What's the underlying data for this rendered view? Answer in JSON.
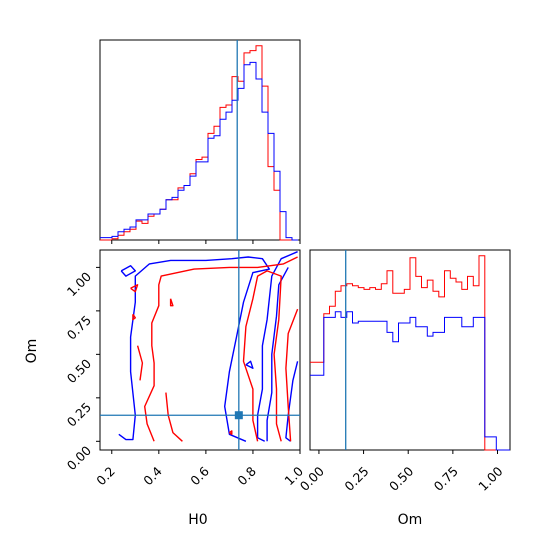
{
  "chart_data": {
    "type": "corner",
    "parameters": [
      "H0",
      "Om"
    ],
    "truths": {
      "H0": 0.74,
      "Om": 0.15
    },
    "colors": {
      "red": "#ff0000",
      "blue": "#0000ff",
      "truth": "#1f77b4"
    },
    "hist_H0": {
      "xlim": [
        0.15,
        1.01
      ],
      "bin_edges": [
        0.15,
        0.1758,
        0.2016,
        0.2274,
        0.2532,
        0.279,
        0.3048,
        0.3306,
        0.3564,
        0.3822,
        0.408,
        0.4338,
        0.4596,
        0.4854,
        0.5112,
        0.537,
        0.5628,
        0.5886,
        0.6144,
        0.6402,
        0.666,
        0.6918,
        0.7176,
        0.7434,
        0.7692,
        0.795,
        0.8208,
        0.8466,
        0.8724,
        0.8982,
        0.924,
        0.9498,
        0.9756,
        1.0014
      ],
      "series": [
        {
          "color": "red",
          "values": [
            0,
            0,
            0.5,
            2,
            3.5,
            4.5,
            8,
            7,
            10,
            11,
            13,
            17,
            17,
            22,
            23,
            28,
            34,
            35,
            45,
            48,
            56,
            57,
            69,
            67,
            79,
            80,
            82,
            65,
            31,
            21,
            0,
            0,
            0
          ]
        },
        {
          "color": "blue",
          "values": [
            1,
            1,
            1.5,
            3.5,
            4.5,
            5.5,
            8.5,
            8.5,
            11,
            11,
            13,
            17,
            18,
            21,
            23,
            27,
            33,
            33,
            43,
            44,
            51,
            54,
            59,
            64,
            74,
            75,
            68,
            54,
            45,
            29,
            12,
            1,
            0
          ]
        }
      ]
    },
    "hist_Om": {
      "xlim": [
        -0.05,
        1.07
      ],
      "bin_edges": [
        -0.05,
        -0.005,
        0.0272,
        0.0594,
        0.0916,
        0.1238,
        0.156,
        0.1882,
        0.2204,
        0.2526,
        0.2848,
        0.317,
        0.3492,
        0.3814,
        0.4136,
        0.4458,
        0.478,
        0.5102,
        0.5424,
        0.5746,
        0.6068,
        0.639,
        0.6712,
        0.7034,
        0.7356,
        0.7678,
        0.8,
        0.8322,
        0.8644,
        0.8966,
        0.9288,
        0.961,
        0.9932,
        1.0254,
        1.07
      ],
      "series": [
        {
          "color": "red",
          "values": [
            47,
            47,
            73,
            77,
            85,
            88,
            89,
            88,
            87,
            86,
            87,
            86,
            89,
            96,
            84,
            84,
            86,
            103,
            93,
            87,
            91,
            85,
            82,
            96,
            92,
            90,
            86,
            93,
            88,
            104,
            0,
            0,
            0,
            0
          ]
        },
        {
          "color": "blue",
          "values": [
            40,
            40,
            71,
            71,
            74,
            71,
            74,
            68,
            69,
            69,
            69,
            69,
            69,
            63,
            58,
            68,
            68,
            71,
            66,
            66,
            61,
            63,
            63,
            71,
            71,
            71,
            66,
            66,
            71,
            71,
            7,
            7,
            0,
            0
          ]
        }
      ]
    },
    "scatter_2d": {
      "xlim": [
        0.15,
        1.0
      ],
      "ylim": [
        -0.05,
        1.1
      ],
      "contours": [
        {
          "color": "blue",
          "points": [
            [
              0.23,
              0.04
            ],
            [
              0.26,
              0.01
            ],
            [
              0.29,
              0.01
            ],
            [
              0.3,
              0.15
            ],
            [
              0.28,
              0.4
            ],
            [
              0.28,
              0.6
            ],
            [
              0.3,
              0.8
            ],
            [
              0.3,
              0.95
            ],
            [
              0.36,
              1.02
            ],
            [
              0.45,
              1.04
            ],
            [
              0.6,
              1.04
            ],
            [
              0.71,
              1.05
            ],
            [
              0.78,
              1.06
            ],
            [
              0.84,
              1.05
            ],
            [
              0.87,
              0.99
            ],
            [
              0.8,
              0.97
            ],
            [
              0.76,
              0.8
            ],
            [
              0.73,
              0.6
            ],
            [
              0.7,
              0.4
            ],
            [
              0.68,
              0.2
            ],
            [
              0.7,
              0.04
            ],
            [
              0.77,
              0.0
            ]
          ]
        },
        {
          "color": "blue",
          "points": [
            [
              0.99,
              1.09
            ],
            [
              0.92,
              1.05
            ],
            [
              0.88,
              0.95
            ],
            [
              0.86,
              0.7
            ],
            [
              0.84,
              0.55
            ],
            [
              0.84,
              0.3
            ],
            [
              0.82,
              0.15
            ],
            [
              0.82,
              0.02
            ],
            [
              0.85,
              0.0
            ]
          ]
        },
        {
          "color": "blue",
          "points": [
            [
              0.95,
              1.0
            ],
            [
              0.91,
              0.9
            ],
            [
              0.9,
              0.72
            ],
            [
              0.88,
              0.5
            ],
            [
              0.88,
              0.28
            ],
            [
              0.86,
              0.12
            ],
            [
              0.86,
              0.0
            ]
          ]
        },
        {
          "color": "blue",
          "points": [
            [
              0.99,
              0.46
            ],
            [
              0.97,
              0.35
            ],
            [
              0.95,
              0.15
            ],
            [
              0.94,
              0.02
            ],
            [
              0.96,
              0.0
            ]
          ]
        },
        {
          "color": "red",
          "points": [
            [
              0.38,
              0.0
            ],
            [
              0.35,
              0.1
            ],
            [
              0.34,
              0.2
            ],
            [
              0.38,
              0.32
            ],
            [
              0.38,
              0.45
            ],
            [
              0.37,
              0.55
            ],
            [
              0.37,
              0.68
            ],
            [
              0.4,
              0.78
            ],
            [
              0.4,
              0.9
            ],
            [
              0.41,
              0.95
            ],
            [
              0.55,
              0.99
            ],
            [
              0.7,
              1.0
            ],
            [
              0.82,
              1.0
            ],
            [
              0.93,
              1.02
            ],
            [
              0.99,
              1.06
            ]
          ]
        },
        {
          "color": "red",
          "points": [
            [
              0.82,
              0.0
            ],
            [
              0.8,
              0.12
            ],
            [
              0.8,
              0.3
            ],
            [
              0.76,
              0.46
            ],
            [
              0.77,
              0.66
            ],
            [
              0.8,
              0.82
            ],
            [
              0.82,
              0.95
            ],
            [
              0.86,
              0.98
            ],
            [
              0.92,
              0.95
            ],
            [
              0.91,
              0.7
            ],
            [
              0.89,
              0.5
            ],
            [
              0.9,
              0.3
            ],
            [
              0.9,
              0.1
            ],
            [
              0.92,
              0.0
            ]
          ]
        },
        {
          "color": "red",
          "points": [
            [
              0.99,
              0.76
            ],
            [
              0.95,
              0.62
            ],
            [
              0.94,
              0.42
            ],
            [
              0.95,
              0.2
            ],
            [
              0.96,
              0.0
            ]
          ]
        },
        {
          "color": "red",
          "points": [
            [
              0.43,
              0.28
            ],
            [
              0.44,
              0.15
            ],
            [
              0.46,
              0.05
            ],
            [
              0.5,
              0.0
            ]
          ]
        },
        {
          "color": "red",
          "points": [
            [
              0.31,
              0.55
            ],
            [
              0.33,
              0.45
            ],
            [
              0.32,
              0.35
            ]
          ]
        }
      ],
      "blobs": [
        {
          "color": "blue",
          "points": [
            [
              0.24,
              0.98
            ],
            [
              0.28,
              1.01
            ],
            [
              0.3,
              0.98
            ],
            [
              0.26,
              0.95
            ],
            [
              0.24,
              0.98
            ]
          ]
        },
        {
          "color": "red",
          "points": [
            [
              0.28,
              0.88
            ],
            [
              0.31,
              0.9
            ],
            [
              0.3,
              0.86
            ],
            [
              0.28,
              0.88
            ]
          ]
        },
        {
          "color": "red",
          "points": [
            [
              0.45,
              0.82
            ],
            [
              0.46,
              0.78
            ],
            [
              0.45,
              0.78
            ],
            [
              0.45,
              0.82
            ]
          ]
        },
        {
          "color": "red",
          "points": [
            [
              0.29,
              0.73
            ],
            [
              0.3,
              0.71
            ],
            [
              0.29,
              0.7
            ],
            [
              0.29,
              0.73
            ]
          ]
        },
        {
          "color": "blue",
          "points": [
            [
              0.77,
              0.44
            ],
            [
              0.79,
              0.46
            ],
            [
              0.8,
              0.42
            ],
            [
              0.77,
              0.44
            ]
          ]
        },
        {
          "color": "red",
          "points": [
            [
              0.7,
              0.05
            ],
            [
              0.71,
              0.06
            ],
            [
              0.71,
              0.04
            ],
            [
              0.7,
              0.05
            ]
          ]
        }
      ]
    },
    "axes": {
      "H0_ticks": [
        0.2,
        0.4,
        0.6,
        0.8,
        1.0
      ],
      "H0_tick_labels": [
        "0.2",
        "0.4",
        "0.6",
        "0.8",
        "1.0"
      ],
      "Om_ticks": [
        0.0,
        0.25,
        0.5,
        0.75,
        1.0
      ],
      "Om_tick_labels": [
        "0.00",
        "0.25",
        "0.50",
        "0.75",
        "1.00"
      ],
      "xlabel_left": "H0",
      "xlabel_right": "Om",
      "ylabel": "Om"
    }
  }
}
